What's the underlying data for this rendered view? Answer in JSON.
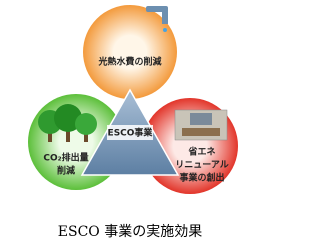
{
  "center": "ESCO事業",
  "nodes": [
    {
      "lines": [
        "光熱水費の削減"
      ]
    },
    {
      "lines": [
        "CO₂排出量",
        "削減"
      ]
    },
    {
      "lines": [
        "省エネ",
        "リニューアル",
        "事業の創出"
      ]
    }
  ],
  "caption": "ESCO 事業の実施効果"
}
